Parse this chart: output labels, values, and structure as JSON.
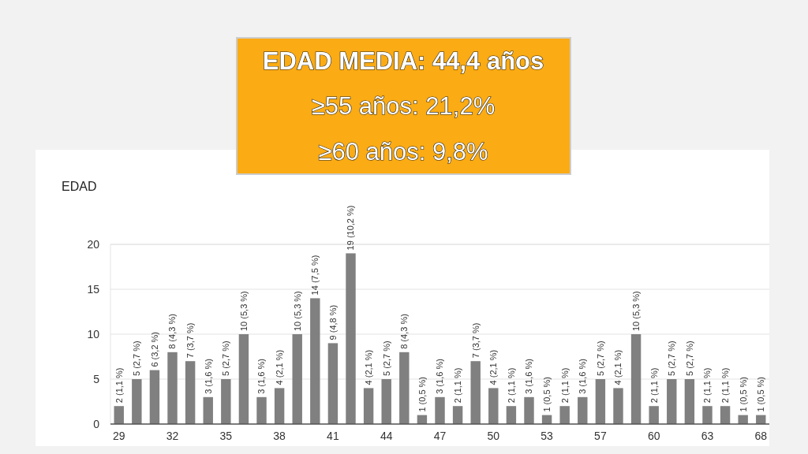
{
  "chart_data": {
    "type": "bar",
    "title": "EDAD",
    "annotations": [
      "EDAD MEDIA: 44,4 años",
      "≥55 años: 21,2%",
      "≥60 años: 9,8%"
    ],
    "categories": [
      "29",
      null,
      null,
      "32",
      null,
      null,
      "35",
      null,
      null,
      "38",
      null,
      null,
      "41",
      null,
      null,
      "44",
      null,
      null,
      "47",
      null,
      null,
      "50",
      null,
      null,
      "53",
      null,
      null,
      "57",
      null,
      null,
      "60",
      null,
      null,
      "63",
      null,
      null,
      "68"
    ],
    "values": [
      2,
      5,
      6,
      8,
      7,
      3,
      5,
      10,
      3,
      4,
      10,
      14,
      9,
      19,
      4,
      5,
      8,
      1,
      3,
      2,
      7,
      4,
      2,
      3,
      1,
      2,
      3,
      5,
      4,
      10,
      2,
      5,
      5,
      2,
      2,
      1,
      1
    ],
    "value_labels": [
      "2 (1,1 %)",
      "5 (2,7 %)",
      "6 (3,2 %)",
      "8 (4,3 %)",
      "7 (3,7 %)",
      "3 (1,6 %)",
      "5 (2,7 %)",
      "10 (5,3 %)",
      "3 (1,6 %)",
      "4 (2,1 %)",
      "10 (5,3 %)",
      "14 (7,5 %)",
      "9 (4,8 %)",
      "19 (10,2 %)",
      "4 (2,1 %)",
      "5 (2,7 %)",
      "8 (4,3 %)",
      "1 (0,5 %)",
      "3 (1,6 %)",
      "2 (1,1 %)",
      "7 (3,7 %)",
      "4 (2,1 %)",
      "2 (1,1 %)",
      "3 (1,6 %)",
      "1 (0,5 %)",
      "2 (1,1 %)",
      "3 (1,6 %)",
      "5 (2,7 %)",
      "4 (2,1 %)",
      "10 (5,3 %)",
      "2 (1,1 %)",
      "5 (2,7 %)",
      "5 (2,7 %)",
      "2 (1,1 %)",
      "2 (1,1 %)",
      "1 (0,5 %)",
      "1 (0,5 %)"
    ],
    "color": "#808080",
    "ylim": [
      0,
      20
    ],
    "yticks": [
      0,
      5,
      10,
      15,
      20
    ],
    "grid": "y"
  }
}
